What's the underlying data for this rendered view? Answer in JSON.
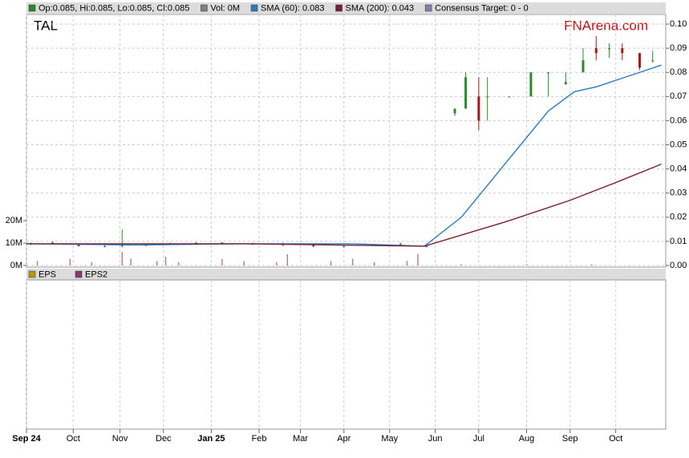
{
  "chart_data": {
    "type": "candlestick",
    "ticker": "TAL",
    "watermark": "FNArena.com",
    "legend": [
      {
        "label": "Op:0.085, Hi:0.085, Lo:0.085, Cl:0.085",
        "color": "#2a8a2a"
      },
      {
        "label": "Vol: 0M",
        "color": "#808080"
      },
      {
        "label": "SMA (60): 0.083",
        "color": "#2b7bbf"
      },
      {
        "label": "SMA (200): 0.043",
        "color": "#7a2036"
      },
      {
        "label": "Consensus Target: 0 - 0",
        "color": "#8080b0"
      }
    ],
    "lower_legend": [
      {
        "label": "EPS",
        "color": "#b8960c"
      },
      {
        "label": "EPS2",
        "color": "#8a3a6a"
      }
    ],
    "xlim": [
      0,
      294
    ],
    "xticks": [
      {
        "value": 0,
        "label": "Sep 24"
      },
      {
        "value": 21.5,
        "label": "Oct"
      },
      {
        "value": 43,
        "label": "Nov"
      },
      {
        "value": 63,
        "label": "Dec"
      },
      {
        "value": 85,
        "label": "Jan 25"
      },
      {
        "value": 107,
        "label": "Feb"
      },
      {
        "value": 126,
        "label": "Mar"
      },
      {
        "value": 146,
        "label": "Apr"
      },
      {
        "value": 167,
        "label": "May"
      },
      {
        "value": 188,
        "label": "Jun"
      },
      {
        "value": 208,
        "label": "Jul"
      },
      {
        "value": 230,
        "label": "Aug"
      },
      {
        "value": 250,
        "label": "Sep"
      },
      {
        "value": 271,
        "label": "Oct"
      }
    ],
    "ylim": [
      0,
      0.104
    ],
    "yticks": [
      {
        "value": 0,
        "label": "0.00"
      },
      0.01,
      0.02,
      0.03,
      0.04,
      0.05,
      0.06,
      0.07,
      0.08,
      0.09,
      {
        "value": 0.1,
        "label": "0.10"
      }
    ],
    "y2lim": [
      0,
      112
    ],
    "y2ticks": [
      {
        "value": 0,
        "label": "0M"
      },
      {
        "value": 10,
        "label": "10M"
      },
      {
        "value": 20,
        "label": "20M"
      }
    ],
    "up_color": "#2a8a2a",
    "down_color": "#a01818",
    "candles": {
      "x": [
        2,
        12,
        24,
        36,
        44,
        55,
        66,
        78,
        90,
        104,
        118,
        132,
        146,
        160,
        172,
        184,
        197,
        202,
        208,
        212,
        222,
        232,
        240,
        248,
        256,
        262,
        268,
        274,
        282,
        288
      ],
      "open": [
        0.009,
        0.009,
        0.0085,
        0.008,
        0.008,
        0.0085,
        0.009,
        0.009,
        0.0095,
        0.009,
        0.009,
        0.0085,
        0.008,
        0.0085,
        0.009,
        0.008,
        0.063,
        0.065,
        0.07,
        0.07,
        0.07,
        0.07,
        0.08,
        0.075,
        0.08,
        0.09,
        0.09,
        0.09,
        0.088,
        0.085
      ],
      "high": [
        0.0095,
        0.01,
        0.009,
        0.0085,
        0.015,
        0.009,
        0.0095,
        0.0095,
        0.0095,
        0.0095,
        0.0095,
        0.009,
        0.0085,
        0.009,
        0.0095,
        0.0085,
        0.065,
        0.08,
        0.078,
        0.078,
        0.07,
        0.08,
        0.08,
        0.08,
        0.09,
        0.095,
        0.092,
        0.092,
        0.088,
        0.089
      ],
      "low": [
        0.0085,
        0.009,
        0.008,
        0.0075,
        0.0075,
        0.008,
        0.0085,
        0.0085,
        0.009,
        0.0085,
        0.008,
        0.0075,
        0.0075,
        0.008,
        0.0085,
        0.0075,
        0.062,
        0.065,
        0.056,
        0.06,
        0.07,
        0.07,
        0.07,
        0.075,
        0.08,
        0.085,
        0.086,
        0.085,
        0.081,
        0.084
      ],
      "close": [
        0.009,
        0.0095,
        0.008,
        0.008,
        0.0085,
        0.0085,
        0.009,
        0.0095,
        0.009,
        0.009,
        0.0085,
        0.008,
        0.008,
        0.0085,
        0.009,
        0.008,
        0.065,
        0.078,
        0.06,
        0.07,
        0.07,
        0.08,
        0.08,
        0.076,
        0.085,
        0.088,
        0.09,
        0.088,
        0.082,
        0.085
      ]
    },
    "series": [
      {
        "name": "SMA (60)",
        "color": "#2b7bbf",
        "x": [
          0,
          50,
          100,
          150,
          183,
          200,
          220,
          240,
          252,
          262,
          272,
          282,
          292
        ],
        "values": [
          0.009,
          0.0085,
          0.009,
          0.009,
          0.008,
          0.02,
          0.042,
          0.064,
          0.072,
          0.074,
          0.077,
          0.08,
          0.083
        ]
      },
      {
        "name": "SMA (200)",
        "color": "#7a2036",
        "x": [
          0,
          100,
          183,
          220,
          250,
          270,
          292
        ],
        "values": [
          0.009,
          0.009,
          0.008,
          0.018,
          0.027,
          0.034,
          0.042
        ]
      }
    ],
    "volume": {
      "axis": "y2",
      "x": [
        5,
        20,
        30,
        44,
        48,
        60,
        64,
        70,
        90,
        100,
        115,
        120,
        140,
        150,
        160,
        175,
        180,
        200,
        230,
        260
      ],
      "values": [
        2,
        3,
        1.5,
        6,
        3,
        2,
        4,
        1.5,
        3,
        2,
        1.5,
        5,
        2,
        3,
        1.5,
        2,
        5,
        0.5,
        0.5,
        0.5
      ],
      "color": "#a04040"
    }
  }
}
